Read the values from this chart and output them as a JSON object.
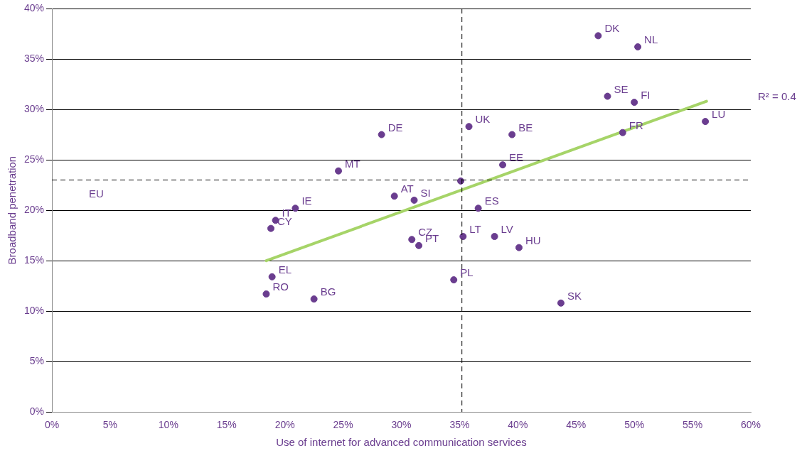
{
  "chart_data": {
    "type": "scatter",
    "xlabel": "Use of internet for advanced communication services",
    "ylabel": "Broadband penetration",
    "xlim": [
      0,
      60
    ],
    "ylim": [
      0,
      40
    ],
    "xticks": [
      {
        "value": 0,
        "label": "0%"
      },
      {
        "value": 5,
        "label": "5%"
      },
      {
        "value": 10,
        "label": "10%"
      },
      {
        "value": 15,
        "label": "15%"
      },
      {
        "value": 20,
        "label": "20%"
      },
      {
        "value": 25,
        "label": "25%"
      },
      {
        "value": 30,
        "label": "30%"
      },
      {
        "value": 35,
        "label": "35%"
      },
      {
        "value": 40,
        "label": "40%"
      },
      {
        "value": 45,
        "label": "45%"
      },
      {
        "value": 50,
        "label": "50%"
      },
      {
        "value": 55,
        "label": "55%"
      },
      {
        "value": 60,
        "label": "60%"
      }
    ],
    "yticks": [
      {
        "value": 0,
        "label": "0%"
      },
      {
        "value": 5,
        "label": "5%"
      },
      {
        "value": 10,
        "label": "10%"
      },
      {
        "value": 15,
        "label": "15%"
      },
      {
        "value": 20,
        "label": "20%"
      },
      {
        "value": 25,
        "label": "25%"
      },
      {
        "value": 30,
        "label": "30%"
      },
      {
        "value": 35,
        "label": "35%"
      },
      {
        "value": 40,
        "label": "40%"
      }
    ],
    "grid": "y",
    "legend": false,
    "series": [
      {
        "type": "scatter",
        "marker": "circle",
        "color": "#6a3d8f",
        "x": [
          46.9,
          50.3,
          47.7,
          50.0,
          56.1,
          49.0,
          35.8,
          39.5,
          28.3,
          38.7,
          24.6,
          35.1,
          29.4,
          31.1,
          20.9,
          36.6,
          19.2,
          18.8,
          30.9,
          31.5,
          35.3,
          38.0,
          40.1,
          18.9,
          34.5,
          18.4,
          22.5,
          43.7
        ],
        "values": [
          37.3,
          36.2,
          31.3,
          30.7,
          28.8,
          27.7,
          28.3,
          27.5,
          27.5,
          24.5,
          23.9,
          22.9,
          21.4,
          21.0,
          20.2,
          20.2,
          19.0,
          18.2,
          17.1,
          16.5,
          17.4,
          17.4,
          16.3,
          13.4,
          13.1,
          11.7,
          11.2,
          10.8
        ]
      },
      {
        "type": "line",
        "marker": "none",
        "color": "#a6d468",
        "x": [
          18.4,
          56.2
        ],
        "values": [
          15.0,
          30.8
        ]
      }
    ],
    "ref_lines": [
      {
        "axis": "y",
        "value": 23.0,
        "label": "EU",
        "line_style": "dashed",
        "color": "#000000"
      },
      {
        "axis": "x",
        "value": 35.2,
        "line_style": "dashed",
        "color": "#000000"
      }
    ],
    "annotations": [
      {
        "text": "DK",
        "x": 46.9,
        "y": 37.3
      },
      {
        "text": "NL",
        "x": 50.3,
        "y": 36.2
      },
      {
        "text": "SE",
        "x": 47.7,
        "y": 31.3
      },
      {
        "text": "FI",
        "x": 50.0,
        "y": 30.7
      },
      {
        "text": "LU",
        "x": 56.1,
        "y": 28.8
      },
      {
        "text": "FR",
        "x": 49.0,
        "y": 27.7
      },
      {
        "text": "UK",
        "x": 35.8,
        "y": 28.3
      },
      {
        "text": "BE",
        "x": 39.5,
        "y": 27.5
      },
      {
        "text": "DE",
        "x": 28.3,
        "y": 27.5
      },
      {
        "text": "EE",
        "x": 38.7,
        "y": 24.5
      },
      {
        "text": "MT",
        "x": 24.6,
        "y": 23.9
      },
      {
        "text": "AT",
        "x": 29.4,
        "y": 21.4
      },
      {
        "text": "SI",
        "x": 31.1,
        "y": 21.0
      },
      {
        "text": "IE",
        "x": 20.9,
        "y": 20.2
      },
      {
        "text": "ES",
        "x": 36.6,
        "y": 20.2
      },
      {
        "text": "IT",
        "x": 19.2,
        "y": 19.0
      },
      {
        "text": "CY",
        "x": 18.8,
        "y": 18.2
      },
      {
        "text": "CZ",
        "x": 30.9,
        "y": 17.1
      },
      {
        "text": "PT",
        "x": 31.5,
        "y": 16.5
      },
      {
        "text": "LT",
        "x": 35.3,
        "y": 17.4
      },
      {
        "text": "LV",
        "x": 38.0,
        "y": 17.4
      },
      {
        "text": "HU",
        "x": 40.1,
        "y": 16.3
      },
      {
        "text": "EL",
        "x": 18.9,
        "y": 13.4
      },
      {
        "text": "PL",
        "x": 34.5,
        "y": 13.1
      },
      {
        "text": "RO",
        "x": 18.4,
        "y": 11.7
      },
      {
        "text": "BG",
        "x": 22.5,
        "y": 11.2
      },
      {
        "text": "SK",
        "x": 43.7,
        "y": 10.8
      },
      "R² = 0.4"
    ]
  }
}
